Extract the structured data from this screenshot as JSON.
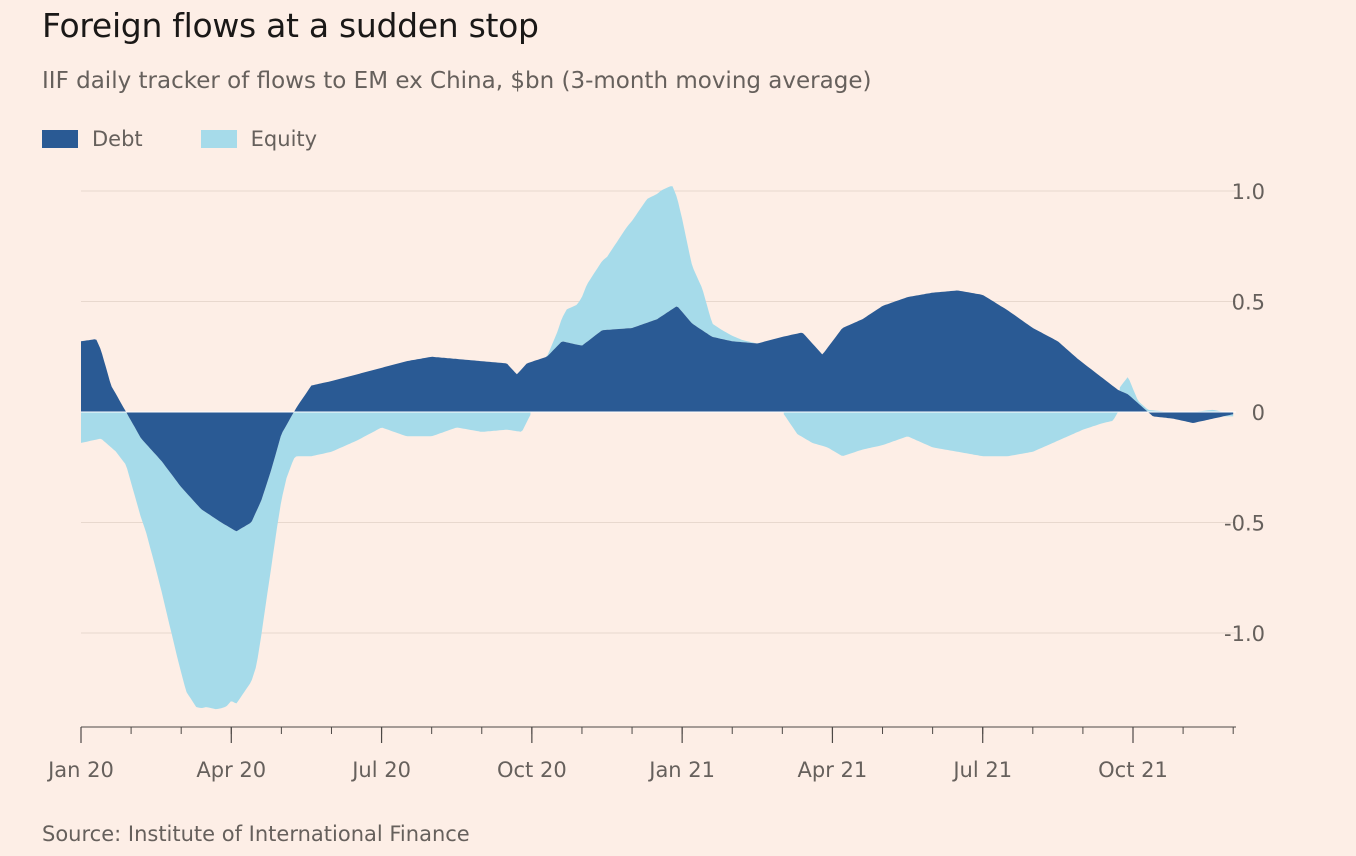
{
  "title": "Foreign flows at a sudden stop",
  "subtitle": "IIF daily tracker of flows to EM ex China, $bn (3-month moving average)",
  "source": "Source: Institute of International Finance",
  "colors": {
    "background": "#fdeee6",
    "debt": "#2a5a94",
    "equity": "#a6dbea",
    "grid": "#e8d8ce",
    "axis": "#4d4845"
  },
  "chart_data": {
    "type": "area",
    "stacked": true,
    "x_unit": "month (decimal, 0 = Jan 2020)",
    "x_ticks": [
      {
        "x": 0,
        "label": "Jan 20"
      },
      {
        "x": 3,
        "label": "Apr 20"
      },
      {
        "x": 6,
        "label": "Jul 20"
      },
      {
        "x": 9,
        "label": "Oct 20"
      },
      {
        "x": 12,
        "label": "Jan 21"
      },
      {
        "x": 15,
        "label": "Apr 21"
      },
      {
        "x": 18,
        "label": "Jul 21"
      },
      {
        "x": 21,
        "label": "Oct 21"
      }
    ],
    "y_ticks": [
      {
        "y": 1.0,
        "label": "1.0"
      },
      {
        "y": 0.5,
        "label": "0.5"
      },
      {
        "y": 0,
        "label": "0"
      },
      {
        "y": -0.5,
        "label": "-0.5"
      },
      {
        "y": -1.0,
        "label": "-1.0"
      }
    ],
    "xlim": [
      0,
      23.1
    ],
    "ylim": [
      -1.43,
      1.12
    ],
    "grid": true,
    "legend_position": "top-left",
    "series": [
      {
        "name": "Debt",
        "color": "#2a5a94",
        "points": [
          [
            0,
            0.32
          ],
          [
            0.3,
            0.33
          ],
          [
            0.4,
            0.28
          ],
          [
            0.6,
            0.12
          ],
          [
            0.9,
            0.0
          ],
          [
            1.2,
            -0.12
          ],
          [
            1.6,
            -0.22
          ],
          [
            2.0,
            -0.34
          ],
          [
            2.4,
            -0.44
          ],
          [
            2.8,
            -0.5
          ],
          [
            3.1,
            -0.54
          ],
          [
            3.4,
            -0.5
          ],
          [
            3.6,
            -0.4
          ],
          [
            3.8,
            -0.26
          ],
          [
            4.0,
            -0.1
          ],
          [
            4.3,
            0.02
          ],
          [
            4.6,
            0.12
          ],
          [
            5.0,
            0.14
          ],
          [
            5.5,
            0.17
          ],
          [
            6.0,
            0.2
          ],
          [
            6.5,
            0.23
          ],
          [
            7.0,
            0.25
          ],
          [
            7.5,
            0.24
          ],
          [
            8.0,
            0.23
          ],
          [
            8.5,
            0.22
          ],
          [
            8.7,
            0.17
          ],
          [
            8.9,
            0.22
          ],
          [
            9.3,
            0.25
          ],
          [
            9.6,
            0.32
          ],
          [
            10.0,
            0.3
          ],
          [
            10.4,
            0.37
          ],
          [
            11.0,
            0.38
          ],
          [
            11.5,
            0.42
          ],
          [
            11.9,
            0.48
          ],
          [
            12.2,
            0.4
          ],
          [
            12.6,
            0.34
          ],
          [
            13.0,
            0.32
          ],
          [
            13.5,
            0.31
          ],
          [
            14.0,
            0.34
          ],
          [
            14.4,
            0.36
          ],
          [
            14.8,
            0.26
          ],
          [
            15.2,
            0.38
          ],
          [
            15.6,
            0.42
          ],
          [
            16.0,
            0.48
          ],
          [
            16.5,
            0.52
          ],
          [
            17.0,
            0.54
          ],
          [
            17.5,
            0.55
          ],
          [
            18.0,
            0.53
          ],
          [
            18.5,
            0.46
          ],
          [
            19.0,
            0.38
          ],
          [
            19.5,
            0.32
          ],
          [
            19.9,
            0.24
          ],
          [
            20.3,
            0.17
          ],
          [
            20.7,
            0.1
          ],
          [
            20.9,
            0.08
          ],
          [
            21.2,
            0.02
          ],
          [
            21.4,
            -0.02
          ],
          [
            21.8,
            -0.03
          ],
          [
            22.2,
            -0.05
          ],
          [
            22.6,
            -0.03
          ],
          [
            23.0,
            -0.01
          ]
        ]
      },
      {
        "name": "Equity",
        "color": "#a6dbea",
        "points": [
          [
            0,
            -0.14
          ],
          [
            0.4,
            -0.12
          ],
          [
            0.7,
            -0.18
          ],
          [
            0.9,
            -0.24
          ],
          [
            1.1,
            -0.32
          ],
          [
            1.3,
            -0.4
          ],
          [
            1.5,
            -0.52
          ],
          [
            1.7,
            -0.65
          ],
          [
            1.9,
            -0.78
          ],
          [
            2.1,
            -0.9
          ],
          [
            2.3,
            -0.92
          ],
          [
            2.5,
            -0.88
          ],
          [
            2.7,
            -0.86
          ],
          [
            2.9,
            -0.82
          ],
          [
            3.0,
            -0.78
          ],
          [
            3.1,
            -0.78
          ],
          [
            3.3,
            -0.74
          ],
          [
            3.5,
            -0.7
          ],
          [
            3.7,
            -0.52
          ],
          [
            3.9,
            -0.36
          ],
          [
            4.1,
            -0.24
          ],
          [
            4.3,
            -0.2
          ],
          [
            4.6,
            -0.2
          ],
          [
            5.0,
            -0.18
          ],
          [
            5.5,
            -0.13
          ],
          [
            6.0,
            -0.07
          ],
          [
            6.5,
            -0.11
          ],
          [
            7.0,
            -0.11
          ],
          [
            7.5,
            -0.07
          ],
          [
            8.0,
            -0.09
          ],
          [
            8.5,
            -0.08
          ],
          [
            8.8,
            -0.09
          ],
          [
            9.0,
            0.0
          ],
          [
            9.3,
            0.0
          ],
          [
            9.5,
            0.06
          ],
          [
            9.7,
            0.15
          ],
          [
            9.9,
            0.18
          ],
          [
            10.1,
            0.26
          ],
          [
            10.5,
            0.33
          ],
          [
            10.9,
            0.46
          ],
          [
            11.3,
            0.56
          ],
          [
            11.6,
            0.57
          ],
          [
            11.8,
            0.56
          ],
          [
            12.0,
            0.42
          ],
          [
            12.2,
            0.26
          ],
          [
            12.4,
            0.19
          ],
          [
            12.6,
            0.06
          ],
          [
            12.8,
            0.04
          ],
          [
            13.2,
            0.01
          ],
          [
            13.5,
            0.0
          ],
          [
            14.0,
            0.0
          ],
          [
            14.3,
            -0.1
          ],
          [
            14.6,
            -0.14
          ],
          [
            14.9,
            -0.16
          ],
          [
            15.2,
            -0.2
          ],
          [
            15.6,
            -0.17
          ],
          [
            16.0,
            -0.15
          ],
          [
            16.5,
            -0.11
          ],
          [
            17.0,
            -0.16
          ],
          [
            17.5,
            -0.18
          ],
          [
            18.0,
            -0.2
          ],
          [
            18.5,
            -0.2
          ],
          [
            19.0,
            -0.18
          ],
          [
            19.5,
            -0.13
          ],
          [
            20.0,
            -0.08
          ],
          [
            20.4,
            -0.05
          ],
          [
            20.6,
            -0.04
          ],
          [
            20.9,
            0.08
          ],
          [
            21.1,
            0.01
          ],
          [
            21.3,
            0.01
          ],
          [
            21.7,
            0.0
          ],
          [
            22.2,
            0.0
          ],
          [
            22.6,
            0.01
          ],
          [
            23.0,
            -0.01
          ]
        ]
      }
    ]
  }
}
